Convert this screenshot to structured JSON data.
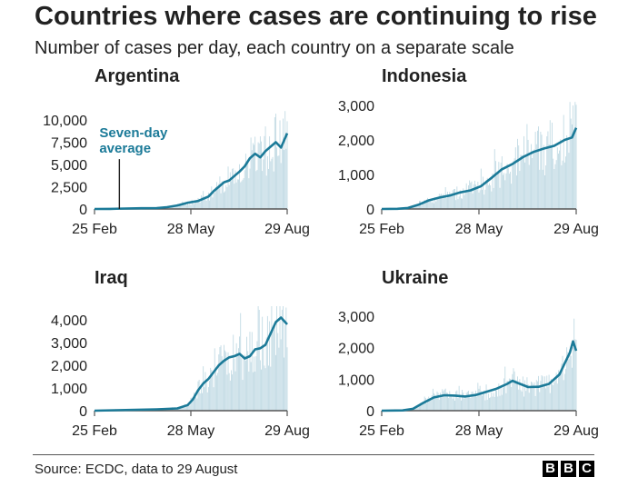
{
  "title": "Countries where cases are continuing to rise",
  "subtitle": "Number of cases per day, each country on a separate scale",
  "source": "Source: ECDC, data to 29 August",
  "logo": [
    "B",
    "B",
    "C"
  ],
  "colors": {
    "bar": "#bfd9e3",
    "line": "#1b7a98",
    "annotation": "#1b7a98",
    "axis": "#555555",
    "text": "#222222"
  },
  "chart_data": [
    {
      "type": "bar",
      "title": "Argentina",
      "xlabel": "",
      "ylabel": "",
      "x_ticks": [
        "25 Feb",
        "28 May",
        "29 Aug"
      ],
      "y_ticks": [
        0,
        2500,
        5000,
        7500,
        10000
      ],
      "y_tick_labels": [
        "0",
        "2,500",
        "5,000",
        "7,500",
        "10,000"
      ],
      "ylim": [
        0,
        11000
      ],
      "annotation": {
        "text_lines": [
          "Seven-day",
          "average"
        ],
        "day": 24,
        "value": 5600
      },
      "series": [
        {
          "name": "Daily cases",
          "kind": "bars",
          "shape": "argentina"
        },
        {
          "name": "Seven-day average",
          "kind": "line",
          "points": [
            [
              0,
              0
            ],
            [
              15,
              10
            ],
            [
              30,
              50
            ],
            [
              45,
              80
            ],
            [
              60,
              100
            ],
            [
              70,
              200
            ],
            [
              80,
              400
            ],
            [
              90,
              700
            ],
            [
              100,
              900
            ],
            [
              110,
              1400
            ],
            [
              115,
              2000
            ],
            [
              120,
              2500
            ],
            [
              125,
              3000
            ],
            [
              130,
              3200
            ],
            [
              135,
              3700
            ],
            [
              140,
              4200
            ],
            [
              145,
              4800
            ],
            [
              150,
              5700
            ],
            [
              155,
              6200
            ],
            [
              160,
              5800
            ],
            [
              165,
              6500
            ],
            [
              170,
              7000
            ],
            [
              175,
              7500
            ],
            [
              180,
              6900
            ],
            [
              183,
              7700
            ],
            [
              186,
              8500
            ]
          ]
        }
      ]
    },
    {
      "type": "bar",
      "title": "Indonesia",
      "xlabel": "",
      "ylabel": "",
      "x_ticks": [
        "25 Feb",
        "28 May",
        "29 Aug"
      ],
      "y_ticks": [
        0,
        1000,
        2000,
        3000
      ],
      "y_tick_labels": [
        "0",
        "1,000",
        "2,000",
        "3,000"
      ],
      "ylim": [
        0,
        3100
      ],
      "series": [
        {
          "name": "Daily cases",
          "kind": "bars",
          "shape": "indonesia"
        },
        {
          "name": "Seven-day average",
          "kind": "line",
          "points": [
            [
              0,
              0
            ],
            [
              15,
              5
            ],
            [
              25,
              30
            ],
            [
              35,
              120
            ],
            [
              45,
              250
            ],
            [
              55,
              330
            ],
            [
              65,
              390
            ],
            [
              75,
              480
            ],
            [
              85,
              540
            ],
            [
              95,
              660
            ],
            [
              105,
              900
            ],
            [
              115,
              1150
            ],
            [
              125,
              1300
            ],
            [
              135,
              1500
            ],
            [
              145,
              1650
            ],
            [
              155,
              1750
            ],
            [
              165,
              1830
            ],
            [
              175,
              2000
            ],
            [
              182,
              2070
            ],
            [
              186,
              2350
            ]
          ]
        }
      ]
    },
    {
      "type": "bar",
      "title": "Iraq",
      "xlabel": "",
      "ylabel": "",
      "x_ticks": [
        "25 Feb",
        "28 May",
        "29 Aug"
      ],
      "y_ticks": [
        0,
        1000,
        2000,
        3000,
        4000
      ],
      "y_tick_labels": [
        "0",
        "1,000",
        "2,000",
        "3,000",
        "4,000"
      ],
      "ylim": [
        0,
        4600
      ],
      "series": [
        {
          "name": "Daily cases",
          "kind": "bars",
          "shape": "iraq"
        },
        {
          "name": "Seven-day average",
          "kind": "line",
          "points": [
            [
              0,
              0
            ],
            [
              20,
              20
            ],
            [
              40,
              40
            ],
            [
              60,
              60
            ],
            [
              80,
              100
            ],
            [
              90,
              250
            ],
            [
              95,
              500
            ],
            [
              100,
              900
            ],
            [
              105,
              1200
            ],
            [
              110,
              1400
            ],
            [
              115,
              1700
            ],
            [
              120,
              2000
            ],
            [
              125,
              2200
            ],
            [
              130,
              2350
            ],
            [
              135,
              2400
            ],
            [
              140,
              2500
            ],
            [
              145,
              2300
            ],
            [
              150,
              2400
            ],
            [
              155,
              2700
            ],
            [
              160,
              2750
            ],
            [
              165,
              2900
            ],
            [
              170,
              3400
            ],
            [
              175,
              3900
            ],
            [
              180,
              4100
            ],
            [
              186,
              3800
            ]
          ]
        }
      ]
    },
    {
      "type": "bar",
      "title": "Ukraine",
      "xlabel": "",
      "ylabel": "",
      "x_ticks": [
        "25 Feb",
        "28 May",
        "29 Aug"
      ],
      "y_ticks": [
        0,
        1000,
        2000,
        3000
      ],
      "y_tick_labels": [
        "0",
        "1,000",
        "2,000",
        "3,000"
      ],
      "ylim": [
        0,
        3400
      ],
      "series": [
        {
          "name": "Daily cases",
          "kind": "bars",
          "shape": "ukraine"
        },
        {
          "name": "Seven-day average",
          "kind": "line",
          "points": [
            [
              0,
              0
            ],
            [
              20,
              10
            ],
            [
              30,
              60
            ],
            [
              40,
              250
            ],
            [
              50,
              420
            ],
            [
              60,
              490
            ],
            [
              70,
              480
            ],
            [
              80,
              450
            ],
            [
              90,
              500
            ],
            [
              100,
              600
            ],
            [
              110,
              700
            ],
            [
              120,
              850
            ],
            [
              125,
              950
            ],
            [
              130,
              880
            ],
            [
              140,
              750
            ],
            [
              150,
              760
            ],
            [
              160,
              850
            ],
            [
              170,
              1150
            ],
            [
              175,
              1500
            ],
            [
              180,
              1850
            ],
            [
              183,
              2200
            ],
            [
              186,
              1900
            ]
          ]
        }
      ]
    }
  ]
}
